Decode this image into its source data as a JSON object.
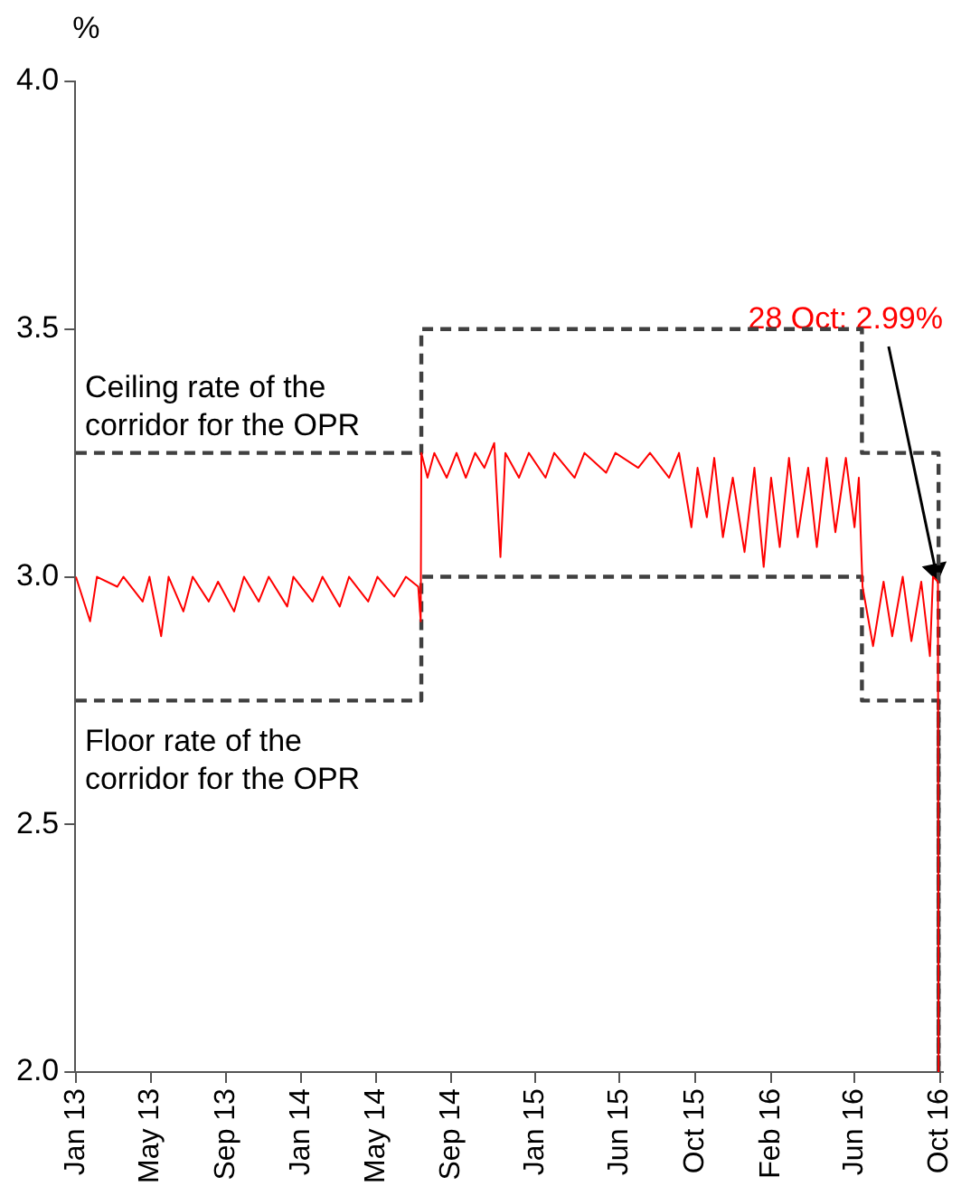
{
  "chart_data": {
    "type": "line",
    "ylabel": "%",
    "annotations": [
      {
        "text": "28 Oct: 2.99%",
        "x": "2016-10-28",
        "y": 2.99
      }
    ],
    "xlim": [
      "2013-01-01",
      "2016-11-05"
    ],
    "xticks": [
      {
        "value": "2013-01-02",
        "label": "Jan 13"
      },
      {
        "value": "2013-05-03",
        "label": "May 13"
      },
      {
        "value": "2013-09-02",
        "label": "Sep 13"
      },
      {
        "value": "2014-01-02",
        "label": "Jan 14"
      },
      {
        "value": "2014-05-03",
        "label": "May 14"
      },
      {
        "value": "2014-09-01",
        "label": "Sep 14"
      },
      {
        "value": "2015-01-15",
        "label": "Jan 15"
      },
      {
        "value": "2015-06-01",
        "label": "Jun 15"
      },
      {
        "value": "2015-10-01",
        "label": "Oct 15"
      },
      {
        "value": "2016-02-01",
        "label": "Feb 16"
      },
      {
        "value": "2016-06-15",
        "label": "Jun 16"
      },
      {
        "value": "2016-10-31",
        "label": "Oct 16"
      }
    ],
    "ylim": [
      2.0,
      4.0
    ],
    "yticks": [
      {
        "value": 2.0,
        "label": "2.0"
      },
      {
        "value": 2.5,
        "label": "2.5"
      },
      {
        "value": 3.0,
        "label": "3.0"
      },
      {
        "value": 3.5,
        "label": "3.5"
      },
      {
        "value": 4.0,
        "label": "4.0"
      }
    ],
    "grid": false,
    "legend": false,
    "marker": "none",
    "series": [
      {
        "color": "#ff0000",
        "x": [
          "2013-01-02",
          "2013-01-25",
          "2013-02-05",
          "2013-03-10",
          "2013-03-20",
          "2013-04-20",
          "2013-05-01",
          "2013-05-20",
          "2013-06-01",
          "2013-06-25",
          "2013-07-10",
          "2013-08-05",
          "2013-08-20",
          "2013-09-15",
          "2013-10-01",
          "2013-10-25",
          "2013-11-10",
          "2013-12-10",
          "2013-12-20",
          "2014-01-20",
          "2014-02-05",
          "2014-03-05",
          "2014-03-20",
          "2014-04-20",
          "2014-05-05",
          "2014-06-01",
          "2014-06-20",
          "2014-07-10",
          "2014-07-14",
          "2014-07-15",
          "2014-07-25",
          "2014-08-05",
          "2014-08-25",
          "2014-09-10",
          "2014-09-25",
          "2014-10-10",
          "2014-10-25",
          "2014-11-10",
          "2014-11-20",
          "2014-11-28",
          "2014-12-20",
          "2015-01-05",
          "2015-02-01",
          "2015-02-15",
          "2015-03-20",
          "2015-04-05",
          "2015-05-10",
          "2015-05-25",
          "2015-07-01",
          "2015-07-20",
          "2015-08-20",
          "2015-09-05",
          "2015-09-25",
          "2015-10-05",
          "2015-10-20",
          "2015-11-01",
          "2015-11-15",
          "2015-12-01",
          "2015-12-20",
          "2016-01-05",
          "2016-01-20",
          "2016-02-01",
          "2016-02-15",
          "2016-03-01",
          "2016-03-15",
          "2016-04-01",
          "2016-04-15",
          "2016-05-01",
          "2016-05-15",
          "2016-06-01",
          "2016-06-15",
          "2016-06-22",
          "2016-06-26",
          "2016-06-28",
          "2016-07-15",
          "2016-08-01",
          "2016-08-15",
          "2016-09-01",
          "2016-09-15",
          "2016-10-01",
          "2016-10-15",
          "2016-10-20",
          "2016-10-28",
          "2016-10-29"
        ],
        "values": [
          3.0,
          2.91,
          3.0,
          2.98,
          3.0,
          2.95,
          3.0,
          2.88,
          3.0,
          2.93,
          3.0,
          2.95,
          2.99,
          2.93,
          3.0,
          2.95,
          3.0,
          2.94,
          3.0,
          2.95,
          3.0,
          2.94,
          3.0,
          2.95,
          3.0,
          2.96,
          3.0,
          2.98,
          2.91,
          3.25,
          3.2,
          3.25,
          3.2,
          3.25,
          3.2,
          3.25,
          3.22,
          3.27,
          3.04,
          3.25,
          3.2,
          3.25,
          3.2,
          3.25,
          3.2,
          3.25,
          3.21,
          3.25,
          3.22,
          3.25,
          3.2,
          3.25,
          3.1,
          3.22,
          3.12,
          3.24,
          3.08,
          3.2,
          3.05,
          3.22,
          3.02,
          3.2,
          3.06,
          3.24,
          3.08,
          3.22,
          3.06,
          3.24,
          3.09,
          3.24,
          3.1,
          3.2,
          3.05,
          2.98,
          2.86,
          2.99,
          2.88,
          3.0,
          2.87,
          2.99,
          2.84,
          3.0,
          2.99,
          2.0
        ]
      },
      {
        "type": "step",
        "name": "Ceiling rate of the corridor for the OPR",
        "color": "#404040",
        "line_style": "dashed",
        "x": [
          "2013-01-02",
          "2014-07-15",
          "2016-06-27",
          "2016-10-29"
        ],
        "values": [
          3.25,
          3.5,
          3.25,
          2.0
        ]
      },
      {
        "type": "step",
        "name": "Floor rate of the corridor for the OPR",
        "color": "#404040",
        "line_style": "dashed",
        "x": [
          "2013-01-02",
          "2014-07-15",
          "2016-06-27",
          "2016-10-29"
        ],
        "values": [
          2.75,
          3.0,
          2.75,
          2.0
        ]
      }
    ]
  }
}
